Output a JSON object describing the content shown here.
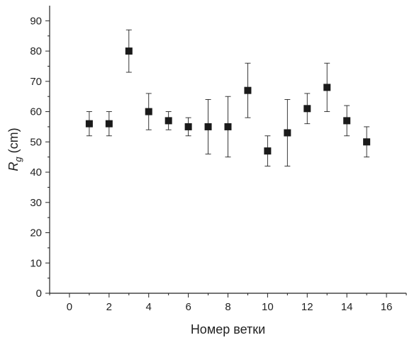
{
  "chart_data": {
    "type": "scatter",
    "title": "",
    "xlabel": "Номер ветки",
    "ylabel_main": "R",
    "ylabel_sub": "g",
    "ylabel_unit": " (cm)",
    "xlim": [
      -1,
      17
    ],
    "ylim": [
      0,
      95
    ],
    "x_ticks": [
      0,
      2,
      4,
      6,
      8,
      10,
      12,
      14,
      16
    ],
    "y_ticks": [
      0,
      10,
      20,
      30,
      40,
      50,
      60,
      70,
      80,
      90
    ],
    "marker": "square",
    "marker_color": "#1a1a1a",
    "grid": false,
    "points": [
      {
        "x": 1,
        "y": 56,
        "err_low": 52,
        "err_high": 60
      },
      {
        "x": 2,
        "y": 56,
        "err_low": 52,
        "err_high": 60
      },
      {
        "x": 3,
        "y": 80,
        "err_low": 73,
        "err_high": 87
      },
      {
        "x": 4,
        "y": 60,
        "err_low": 54,
        "err_high": 66
      },
      {
        "x": 5,
        "y": 57,
        "err_low": 54,
        "err_high": 60
      },
      {
        "x": 6,
        "y": 55,
        "err_low": 52,
        "err_high": 58
      },
      {
        "x": 7,
        "y": 55,
        "err_low": 46,
        "err_high": 64
      },
      {
        "x": 8,
        "y": 55,
        "err_low": 45,
        "err_high": 65
      },
      {
        "x": 9,
        "y": 67,
        "err_low": 58,
        "err_high": 76
      },
      {
        "x": 10,
        "y": 47,
        "err_low": 42,
        "err_high": 52
      },
      {
        "x": 11,
        "y": 53,
        "err_low": 42,
        "err_high": 64
      },
      {
        "x": 12,
        "y": 61,
        "err_low": 56,
        "err_high": 66
      },
      {
        "x": 13,
        "y": 68,
        "err_low": 60,
        "err_high": 76
      },
      {
        "x": 14,
        "y": 57,
        "err_low": 52,
        "err_high": 62
      },
      {
        "x": 15,
        "y": 50,
        "err_low": 45,
        "err_high": 55
      }
    ]
  }
}
